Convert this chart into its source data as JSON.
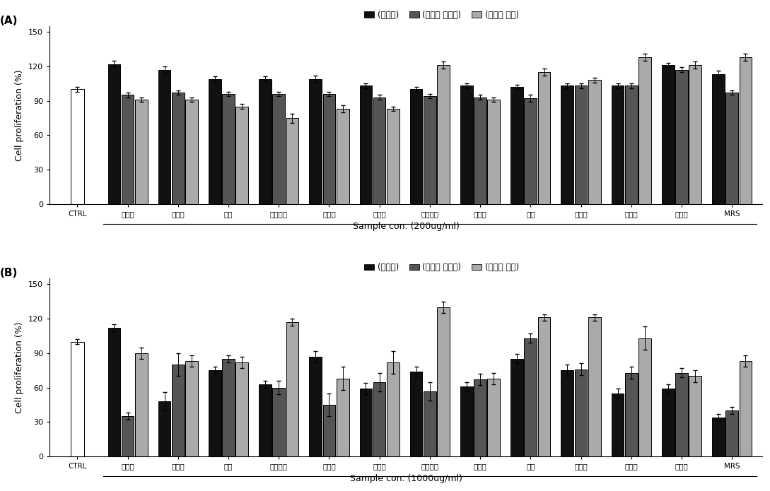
{
  "panel_A": {
    "categories": [
      "CTRL",
      "구기자",
      "꼴지뇵",
      "당근",
      "미성숙감",
      "백년초",
      "산수유",
      "숙부쟱이",
      "양배추",
      "여주",
      "오미자",
      "참다래",
      "흑마늘",
      "MRS"
    ],
    "pre_ferment": [
      100,
      122,
      117,
      109,
      109,
      109,
      103,
      100,
      103,
      102,
      103,
      103,
      121,
      113
    ],
    "post_supernatant": [
      null,
      95,
      97,
      96,
      96,
      96,
      93,
      94,
      93,
      92,
      103,
      103,
      117,
      97
    ],
    "post_pellet": [
      null,
      91,
      91,
      85,
      75,
      83,
      83,
      121,
      91,
      115,
      108,
      128,
      121,
      128
    ],
    "pre_err": [
      2,
      3,
      3,
      2,
      2,
      3,
      2,
      2,
      2,
      2,
      2,
      2,
      2,
      3
    ],
    "sup_err": [
      null,
      2,
      2,
      2,
      2,
      2,
      2,
      2,
      2,
      3,
      2,
      2,
      2,
      2
    ],
    "pel_err": [
      null,
      2,
      2,
      2,
      4,
      3,
      2,
      3,
      2,
      3,
      2,
      3,
      3,
      3
    ],
    "xlabel": "Sample con. (200ug/ml)",
    "ylabel": "Cell proliferation (%)",
    "ylim": [
      0,
      155
    ],
    "yticks": [
      0,
      30,
      60,
      90,
      120,
      150
    ],
    "panel_label": "(A)"
  },
  "panel_B": {
    "categories": [
      "CTRL",
      "구기자",
      "꼴지볕",
      "당근",
      "미성숙감",
      "백년초",
      "산수유",
      "솝부쟱이",
      "양배추",
      "여주",
      "오미자",
      "참다래",
      "흑마늘",
      "MRS"
    ],
    "pre_ferment": [
      100,
      112,
      48,
      75,
      63,
      87,
      59,
      74,
      61,
      85,
      75,
      55,
      59,
      34
    ],
    "post_supernatant": [
      null,
      35,
      80,
      85,
      60,
      45,
      65,
      57,
      67,
      103,
      76,
      73,
      73,
      40
    ],
    "post_pellet": [
      null,
      90,
      83,
      82,
      117,
      68,
      82,
      130,
      68,
      121,
      121,
      103,
      70,
      83
    ],
    "pre_err": [
      2,
      3,
      8,
      3,
      3,
      5,
      5,
      4,
      4,
      4,
      5,
      4,
      4,
      3
    ],
    "sup_err": [
      null,
      3,
      10,
      3,
      6,
      10,
      8,
      8,
      5,
      4,
      5,
      5,
      4,
      3
    ],
    "pel_err": [
      null,
      5,
      5,
      5,
      3,
      10,
      10,
      5,
      5,
      3,
      3,
      10,
      5,
      5
    ],
    "xlabel": "Sample con. (1000ug/ml)",
    "ylabel": "Cell proliferation (%)",
    "ylim": [
      0,
      155
    ],
    "yticks": [
      0,
      30,
      60,
      90,
      120,
      150
    ],
    "panel_label": "(B)"
  },
  "legend_labels": [
    "(발효전)",
    "(발효후 상등액)",
    "(발효후 균체)"
  ],
  "bar_colors": [
    "#111111",
    "#555555",
    "#aaaaaa"
  ],
  "ctrl_color": "#ffffff",
  "bar_width": 0.27,
  "figure_size": [
    10.89,
    6.95
  ],
  "dpi": 100
}
